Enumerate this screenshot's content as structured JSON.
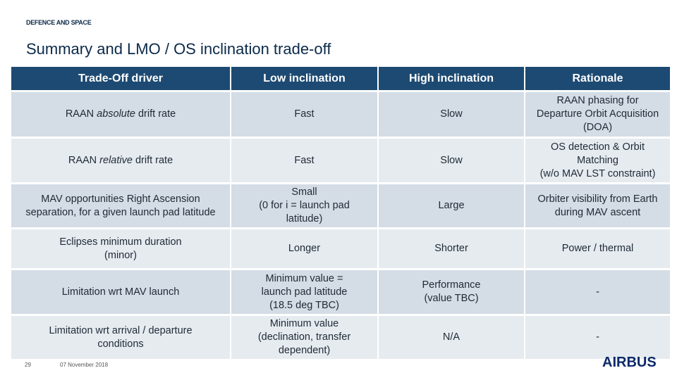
{
  "header": {
    "division": "DEFENCE AND SPACE",
    "title": "Summary and LMO / OS inclination trade-off"
  },
  "table": {
    "columns": [
      "Trade-Off driver",
      "Low inclination",
      "High inclination",
      "Rationale"
    ],
    "rows": [
      [
        {
          "parts": [
            "RAAN ",
            "absolute",
            " drift rate"
          ]
        },
        {
          "lines": [
            "Fast"
          ]
        },
        {
          "lines": [
            "Slow"
          ]
        },
        {
          "lines": [
            "RAAN phasing for",
            "Departure Orbit Acquisition",
            "(DOA)"
          ]
        }
      ],
      [
        {
          "parts": [
            "RAAN ",
            "relative",
            " drift rate"
          ]
        },
        {
          "lines": [
            "Fast"
          ]
        },
        {
          "lines": [
            "Slow"
          ]
        },
        {
          "lines": [
            "OS detection & Orbit",
            "Matching",
            "(w/o MAV LST constraint)"
          ]
        }
      ],
      [
        {
          "lines": [
            "MAV opportunities Right Ascension",
            "separation, for a given launch pad latitude"
          ]
        },
        {
          "lines": [
            "Small",
            "(0 for i = launch pad",
            "latitude)"
          ]
        },
        {
          "lines": [
            "Large"
          ]
        },
        {
          "lines": [
            "Orbiter visibility from Earth",
            "during MAV ascent"
          ]
        }
      ],
      [
        {
          "lines": [
            "Eclipses minimum duration",
            "(minor)"
          ]
        },
        {
          "lines": [
            "Longer"
          ]
        },
        {
          "lines": [
            "Shorter"
          ]
        },
        {
          "lines": [
            "Power / thermal"
          ]
        }
      ],
      [
        {
          "lines": [
            "Limitation wrt MAV launch"
          ]
        },
        {
          "lines": [
            "Minimum value =",
            "launch pad latitude",
            "(18.5 deg TBC)"
          ]
        },
        {
          "lines": [
            "Performance",
            "(value TBC)"
          ]
        },
        {
          "lines": [
            "-"
          ]
        }
      ],
      [
        {
          "lines": [
            "Limitation wrt arrival / departure",
            "conditions"
          ]
        },
        {
          "lines": [
            "Minimum value",
            "(declination, transfer",
            "dependent)"
          ]
        },
        {
          "lines": [
            "N/A"
          ]
        },
        {
          "lines": [
            "-"
          ]
        }
      ]
    ]
  },
  "footer": {
    "page": "29",
    "date": "07 November 2018",
    "logo": "AIRBUS"
  }
}
